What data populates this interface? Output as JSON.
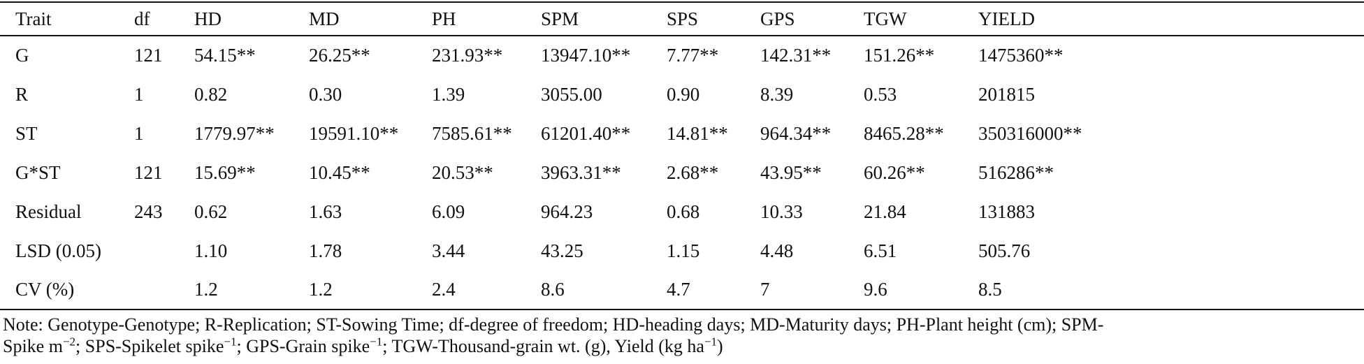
{
  "table": {
    "headers": [
      "Trait",
      "df",
      "HD",
      "MD",
      "PH",
      "SPM",
      "SPS",
      "GPS",
      "TGW",
      "YIELD"
    ],
    "rows": [
      [
        "G",
        "121",
        "54.15**",
        "26.25**",
        "231.93**",
        "13947.10**",
        "7.77**",
        "142.31**",
        "151.26**",
        "1475360**"
      ],
      [
        "R",
        "1",
        "0.82",
        "0.30",
        "1.39",
        "3055.00",
        "0.90",
        "8.39",
        "0.53",
        "201815"
      ],
      [
        "ST",
        "1",
        "1779.97**",
        "19591.10**",
        "7585.61**",
        "61201.40**",
        "14.81**",
        "964.34**",
        "8465.28**",
        "350316000**"
      ],
      [
        "G*ST",
        "121",
        "15.69**",
        "10.45**",
        "20.53**",
        "3963.31**",
        "2.68**",
        "43.95**",
        "60.26**",
        "516286**"
      ],
      [
        "Residual",
        "243",
        "0.62",
        "1.63",
        "6.09",
        "964.23",
        "0.68",
        "10.33",
        "21.84",
        "131883"
      ],
      [
        "LSD (0.05)",
        "",
        "1.10",
        "1.78",
        "3.44",
        "43.25",
        "1.15",
        "4.48",
        "6.51",
        "505.76"
      ],
      [
        "CV (%)",
        "",
        "1.2",
        "1.2",
        "2.4",
        "8.6",
        "4.7",
        "7",
        "9.6",
        "8.5"
      ]
    ]
  },
  "note": {
    "t1": "Note: Genotype-Genotype; R-Replication; ST-Sowing Time; df-degree of freedom; HD-heading days; MD-Maturity days; PH-Plant height (cm); SPM-",
    "t2": "Spike m",
    "s1": "−2",
    "t3": "; SPS-Spikelet spike",
    "s2": "−1",
    "t4": "; GPS-Grain spike",
    "s3": "−1",
    "t5": "; TGW-Thousand-grain wt. (g), Yield (kg ha",
    "s4": "−1",
    "t6": ")"
  }
}
